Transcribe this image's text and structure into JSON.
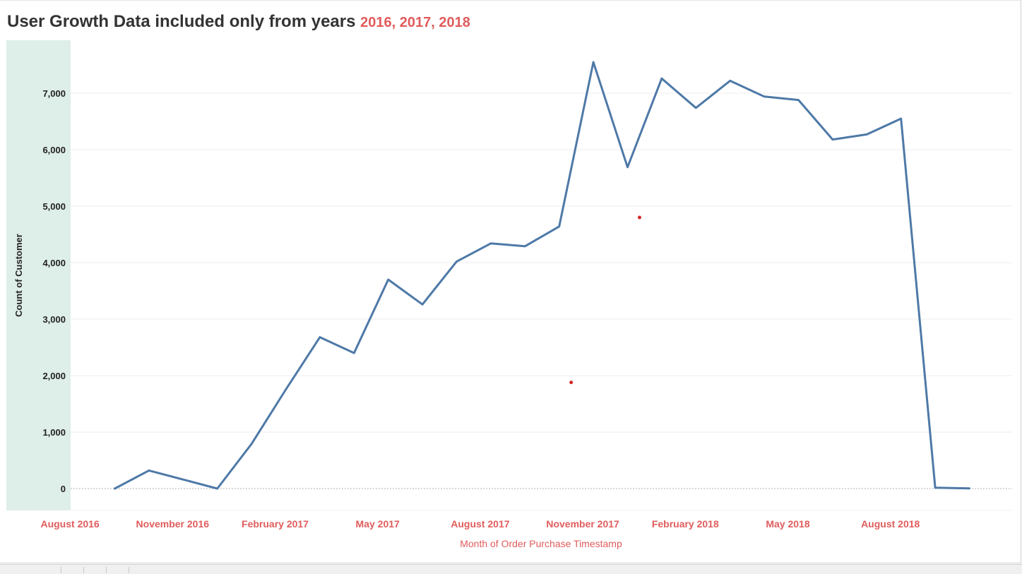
{
  "title": {
    "main": "User Growth Data included only from years",
    "years": "2016, 2017, 2018"
  },
  "colors": {
    "line": "#4e79a7",
    "accent": "#e05c5c",
    "axis_band": "#deeee9",
    "outlier": "#d62728"
  },
  "chart_data": {
    "type": "line",
    "title": "User Growth Data included only from years 2016, 2017, 2018",
    "xlabel": "Month of Order Purchase Timestamp",
    "ylabel": "Count of Customer",
    "ylim": [
      0,
      7800
    ],
    "grid": true,
    "x_ticks": [
      "August 2016",
      "November 2016",
      "February 2017",
      "May 2017",
      "August 2017",
      "November 2017",
      "February 2018",
      "May 2018",
      "August 2018"
    ],
    "y_ticks": [
      "0",
      "1,000",
      "2,000",
      "3,000",
      "4,000",
      "5,000",
      "6,000",
      "7,000"
    ],
    "y_tick_values": [
      0,
      1000,
      2000,
      3000,
      4000,
      5000,
      6000,
      7000
    ],
    "series": [
      {
        "x": [
          "2016-09",
          "2016-10",
          "2016-11",
          "2016-12",
          "2017-01",
          "2017-02",
          "2017-03",
          "2017-04",
          "2017-05",
          "2017-06",
          "2017-07",
          "2017-08",
          "2017-09",
          "2017-10",
          "2017-11",
          "2017-12",
          "2018-01",
          "2018-02",
          "2018-03",
          "2018-04",
          "2018-05",
          "2018-06",
          "2018-07",
          "2018-08",
          "2018-09",
          "2018-10"
        ],
        "values": [
          0,
          320,
          160,
          0,
          790,
          1750,
          2680,
          2400,
          3700,
          3260,
          4020,
          4340,
          4290,
          4640,
          7550,
          5690,
          7260,
          6740,
          7220,
          6940,
          6880,
          6180,
          6270,
          6550,
          16,
          4
        ]
      }
    ],
    "outliers": [
      {
        "x": "2017-10",
        "value": 1880
      },
      {
        "x": "2017-12",
        "value": 4800
      }
    ]
  }
}
